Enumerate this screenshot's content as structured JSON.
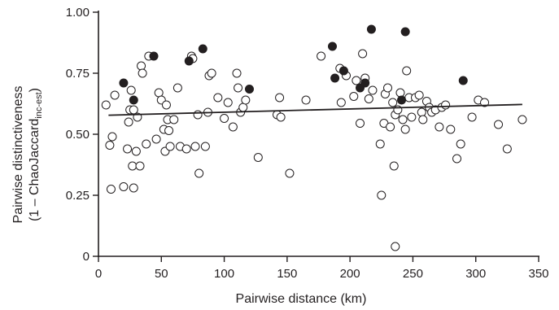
{
  "chart_data": {
    "type": "scatter",
    "xlabel": "Pairwise distance (km)",
    "ylabel_line1": "Pairwise distinctiveness",
    "ylabel_line2_prefix": "(1 – ChaoJaccard",
    "ylabel_line2_subscript": "inc-est",
    "ylabel_line2_suffix": ")",
    "xlim": [
      0,
      350
    ],
    "ylim": [
      0,
      1.0
    ],
    "x_ticks": [
      0,
      50,
      100,
      150,
      200,
      250,
      300,
      350
    ],
    "x_tick_labels": [
      "0",
      "50",
      "100",
      "150",
      "200",
      "250",
      "300",
      "350"
    ],
    "y_ticks": [
      0,
      0.25,
      0.5,
      0.75,
      1.0
    ],
    "y_tick_labels": [
      "0",
      "0.25",
      "0.50",
      "0.75",
      "1.00"
    ],
    "grid": false,
    "colors": {
      "ink": "#231f20",
      "open_fill": "#ffffff"
    },
    "trend_line": {
      "x": [
        8,
        337
      ],
      "y": [
        0.578,
        0.622
      ]
    },
    "series": [
      {
        "marker": "open",
        "points": [
          [
            6,
            0.62
          ],
          [
            9,
            0.455
          ],
          [
            10,
            0.275
          ],
          [
            11,
            0.49
          ],
          [
            13,
            0.66
          ],
          [
            20,
            0.285
          ],
          [
            23,
            0.44
          ],
          [
            24,
            0.55
          ],
          [
            25,
            0.6
          ],
          [
            26,
            0.68
          ],
          [
            27,
            0.37
          ],
          [
            28,
            0.28
          ],
          [
            28,
            0.6
          ],
          [
            30,
            0.43
          ],
          [
            31,
            0.57
          ],
          [
            33,
            0.37
          ],
          [
            34,
            0.78
          ],
          [
            35,
            0.75
          ],
          [
            38,
            0.46
          ],
          [
            40,
            0.82
          ],
          [
            46,
            0.48
          ],
          [
            48,
            0.67
          ],
          [
            50,
            0.64
          ],
          [
            52,
            0.52
          ],
          [
            53,
            0.43
          ],
          [
            54,
            0.62
          ],
          [
            55,
            0.56
          ],
          [
            56,
            0.515
          ],
          [
            57,
            0.45
          ],
          [
            60,
            0.56
          ],
          [
            63,
            0.69
          ],
          [
            65,
            0.45
          ],
          [
            70,
            0.44
          ],
          [
            74,
            0.82
          ],
          [
            75,
            0.81
          ],
          [
            77,
            0.45
          ],
          [
            79,
            0.58
          ],
          [
            80,
            0.34
          ],
          [
            85,
            0.45
          ],
          [
            87,
            0.59
          ],
          [
            88,
            0.74
          ],
          [
            90,
            0.75
          ],
          [
            95,
            0.65
          ],
          [
            100,
            0.565
          ],
          [
            103,
            0.63
          ],
          [
            107,
            0.53
          ],
          [
            110,
            0.75
          ],
          [
            111,
            0.69
          ],
          [
            113,
            0.59
          ],
          [
            115,
            0.61
          ],
          [
            117,
            0.64
          ],
          [
            127,
            0.405
          ],
          [
            142,
            0.58
          ],
          [
            144,
            0.65
          ],
          [
            145,
            0.57
          ],
          [
            152,
            0.34
          ],
          [
            165,
            0.64
          ],
          [
            177,
            0.82
          ],
          [
            192,
            0.77
          ],
          [
            193,
            0.63
          ],
          [
            197,
            0.74
          ],
          [
            203,
            0.655
          ],
          [
            205,
            0.72
          ],
          [
            208,
            0.545
          ],
          [
            210,
            0.83
          ],
          [
            212,
            0.73
          ],
          [
            215,
            0.645
          ],
          [
            218,
            0.68
          ],
          [
            224,
            0.46
          ],
          [
            225,
            0.25
          ],
          [
            227,
            0.545
          ],
          [
            228,
            0.665
          ],
          [
            230,
            0.69
          ],
          [
            232,
            0.53
          ],
          [
            234,
            0.63
          ],
          [
            235,
            0.37
          ],
          [
            236,
            0.04
          ],
          [
            236,
            0.58
          ],
          [
            238,
            0.6
          ],
          [
            240,
            0.67
          ],
          [
            242,
            0.56
          ],
          [
            244,
            0.52
          ],
          [
            245,
            0.76
          ],
          [
            247,
            0.65
          ],
          [
            249,
            0.57
          ],
          [
            252,
            0.65
          ],
          [
            255,
            0.66
          ],
          [
            257,
            0.59
          ],
          [
            258,
            0.56
          ],
          [
            261,
            0.635
          ],
          [
            263,
            0.61
          ],
          [
            265,
            0.59
          ],
          [
            268,
            0.6
          ],
          [
            271,
            0.53
          ],
          [
            273,
            0.61
          ],
          [
            276,
            0.62
          ],
          [
            280,
            0.52
          ],
          [
            285,
            0.4
          ],
          [
            288,
            0.46
          ],
          [
            297,
            0.57
          ],
          [
            302,
            0.64
          ],
          [
            307,
            0.63
          ],
          [
            318,
            0.54
          ],
          [
            325,
            0.44
          ],
          [
            337,
            0.56
          ]
        ]
      },
      {
        "marker": "filled",
        "points": [
          [
            20,
            0.71
          ],
          [
            28,
            0.64
          ],
          [
            44,
            0.82
          ],
          [
            72,
            0.8
          ],
          [
            83,
            0.85
          ],
          [
            120,
            0.685
          ],
          [
            186,
            0.86
          ],
          [
            188,
            0.73
          ],
          [
            195,
            0.76
          ],
          [
            208,
            0.69
          ],
          [
            212,
            0.71
          ],
          [
            217,
            0.93
          ],
          [
            241,
            0.64
          ],
          [
            244,
            0.92
          ],
          [
            290,
            0.72
          ]
        ]
      }
    ]
  }
}
